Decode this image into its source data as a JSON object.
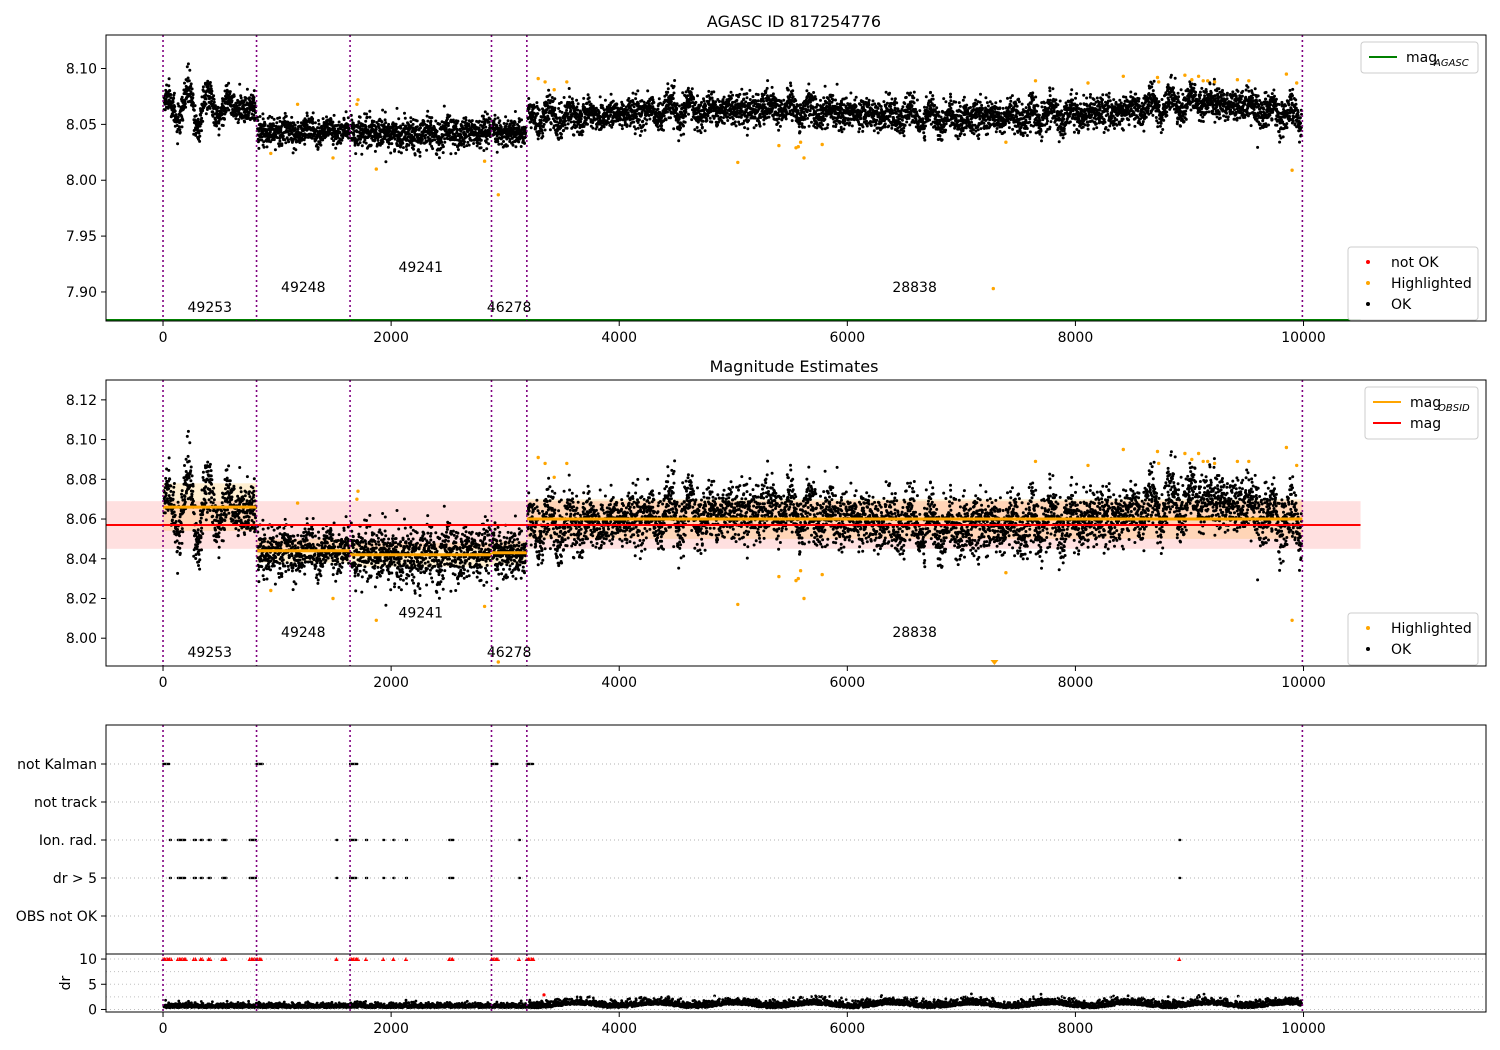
{
  "chart_data": [
    {
      "id": "top",
      "type": "scatter",
      "title": "AGASC ID 817254776",
      "xlim": [
        -500,
        11600
      ],
      "ylim": [
        7.874,
        8.13
      ],
      "xticks": [
        "0",
        "2000",
        "4000",
        "6000",
        "8000",
        "10000"
      ],
      "xtick_values": [
        0,
        2000,
        4000,
        6000,
        8000,
        10000
      ],
      "yticks": [
        "7.90",
        "7.95",
        "8.00",
        "8.05",
        "8.10"
      ],
      "ytick_values": [
        7.9,
        7.95,
        8.0,
        8.05,
        8.1
      ],
      "obsid_boundaries": [
        0,
        820,
        1640,
        2880,
        3190,
        9990
      ],
      "obsid_labels": [
        {
          "text": "49253",
          "x": 410,
          "y": 7.882
        },
        {
          "text": "49248",
          "x": 1230,
          "y": 7.9
        },
        {
          "text": "49241",
          "x": 2260,
          "y": 7.918
        },
        {
          "text": "46278",
          "x": 3035,
          "y": 7.882
        },
        {
          "text": "28838",
          "x": 6590,
          "y": 7.9
        }
      ],
      "reference_line": {
        "name": "mag",
        "subscript": "AGASC",
        "y": 7.874,
        "x_range": [
          -500,
          10500
        ],
        "color": "#008000"
      },
      "segments": [
        {
          "x_range": [
            0,
            820
          ],
          "mean": 8.065,
          "amp": 0.018,
          "noise": 0.007
        },
        {
          "x_range": [
            820,
            1640
          ],
          "mean": 8.044,
          "amp": 0.004,
          "noise": 0.006
        },
        {
          "x_range": [
            1640,
            2880
          ],
          "mean": 8.042,
          "amp": 0.005,
          "noise": 0.007
        },
        {
          "x_range": [
            2880,
            3190
          ],
          "mean": 8.043,
          "amp": 0.004,
          "noise": 0.006
        },
        {
          "x_range": [
            3190,
            9990
          ],
          "mean": 8.06,
          "amp": 0.008,
          "noise": 0.007
        }
      ],
      "ok_points_approx": 7000,
      "highlighted_points": [
        [
          1180,
          8.068
        ],
        [
          945,
          8.024
        ],
        [
          1490,
          8.02
        ],
        [
          1870,
          8.01
        ],
        [
          1700,
          8.068
        ],
        [
          1710,
          8.072
        ],
        [
          2820,
          8.017
        ],
        [
          2940,
          7.987
        ],
        [
          3290,
          8.091
        ],
        [
          3350,
          8.088
        ],
        [
          3540,
          8.088
        ],
        [
          3430,
          8.081
        ],
        [
          5040,
          8.016
        ],
        [
          5400,
          8.031
        ],
        [
          5570,
          8.03
        ],
        [
          5590,
          8.034
        ],
        [
          5550,
          8.029
        ],
        [
          5620,
          8.02
        ],
        [
          5780,
          8.032
        ],
        [
          7280,
          7.903
        ],
        [
          7390,
          8.034
        ],
        [
          7650,
          8.089
        ],
        [
          8110,
          8.087
        ],
        [
          8420,
          8.093
        ],
        [
          8720,
          8.092
        ],
        [
          8960,
          8.094
        ],
        [
          9020,
          8.09
        ],
        [
          9080,
          8.093
        ],
        [
          9120,
          8.089
        ],
        [
          9160,
          8.089
        ],
        [
          9220,
          8.088
        ],
        [
          9420,
          8.09
        ],
        [
          9520,
          8.089
        ],
        [
          9850,
          8.095
        ],
        [
          9900,
          8.009
        ],
        [
          9940,
          8.087
        ],
        [
          8730,
          8.088
        ]
      ],
      "legend_top": [
        {
          "label": "mag",
          "subscript": "AGASC",
          "color": "#008000"
        }
      ],
      "legend_bottom": [
        {
          "label": "not OK",
          "color": "#ff0000"
        },
        {
          "label": "Highlighted",
          "color": "#ffa500"
        },
        {
          "label": "OK",
          "color": "#000000"
        }
      ]
    },
    {
      "id": "middle",
      "type": "scatter",
      "title": "Magnitude Estimates",
      "xlim": [
        -500,
        11600
      ],
      "ylim": [
        7.986,
        8.13
      ],
      "xticks": [
        "0",
        "2000",
        "4000",
        "6000",
        "8000",
        "10000"
      ],
      "xtick_values": [
        0,
        2000,
        4000,
        6000,
        8000,
        10000
      ],
      "yticks": [
        "8.00",
        "8.02",
        "8.04",
        "8.06",
        "8.08",
        "8.10",
        "8.12"
      ],
      "ytick_values": [
        8.0,
        8.02,
        8.04,
        8.06,
        8.08,
        8.1,
        8.12
      ],
      "obsid_boundaries": [
        0,
        820,
        1640,
        2880,
        3190,
        9990
      ],
      "obsid_labels": [
        {
          "text": "49253",
          "x": 410,
          "y": 7.9905
        },
        {
          "text": "49248",
          "x": 1230,
          "y": 8.0005
        },
        {
          "text": "49241",
          "x": 2260,
          "y": 8.0105
        },
        {
          "text": "46278",
          "x": 3035,
          "y": 7.9905
        },
        {
          "text": "28838",
          "x": 6590,
          "y": 8.0005
        }
      ],
      "overall_mag": {
        "name": "mag",
        "y": 8.057,
        "band": [
          8.045,
          8.069
        ],
        "x_range": [
          -500,
          10500
        ],
        "color": "#ff0000"
      },
      "obsid_mags": [
        {
          "x_range": [
            0,
            820
          ],
          "y": 8.066,
          "band": [
            8.054,
            8.078
          ]
        },
        {
          "x_range": [
            820,
            1640
          ],
          "y": 8.044,
          "band": [
            8.038,
            8.05
          ]
        },
        {
          "x_range": [
            1640,
            2880
          ],
          "y": 8.042,
          "band": [
            8.036,
            8.048
          ]
        },
        {
          "x_range": [
            2880,
            3190
          ],
          "y": 8.043,
          "band": [
            8.037,
            8.049
          ]
        },
        {
          "x_range": [
            3190,
            9990
          ],
          "y": 8.06,
          "band": [
            8.05,
            8.07
          ]
        }
      ],
      "highlighted_points": [
        [
          1180,
          8.068
        ],
        [
          945,
          8.024
        ],
        [
          1490,
          8.02
        ],
        [
          1870,
          8.009
        ],
        [
          1700,
          8.07
        ],
        [
          1710,
          8.074
        ],
        [
          2820,
          8.016
        ],
        [
          2940,
          7.988
        ],
        [
          3290,
          8.091
        ],
        [
          3350,
          8.088
        ],
        [
          3540,
          8.088
        ],
        [
          3430,
          8.081
        ],
        [
          5040,
          8.017
        ],
        [
          5400,
          8.031
        ],
        [
          5570,
          8.03
        ],
        [
          5590,
          8.034
        ],
        [
          5550,
          8.029
        ],
        [
          5620,
          8.02
        ],
        [
          5780,
          8.032
        ],
        [
          7390,
          8.033
        ],
        [
          7650,
          8.089
        ],
        [
          8110,
          8.087
        ],
        [
          8420,
          8.095
        ],
        [
          8720,
          8.094
        ],
        [
          8960,
          8.093
        ],
        [
          9020,
          8.09
        ],
        [
          9080,
          8.093
        ],
        [
          9120,
          8.089
        ],
        [
          9160,
          8.089
        ],
        [
          9220,
          8.088
        ],
        [
          9420,
          8.089
        ],
        [
          9520,
          8.089
        ],
        [
          9850,
          8.096
        ],
        [
          9900,
          8.009
        ],
        [
          9940,
          8.087
        ],
        [
          8730,
          8.088
        ]
      ],
      "clipped_point": {
        "x": 7290,
        "y": 7.986
      },
      "legend_top": [
        {
          "label": "mag",
          "subscript": "OBSID",
          "color": "#ffa500"
        },
        {
          "label": "mag",
          "subscript": "",
          "color": "#ff0000"
        }
      ],
      "legend_bottom": [
        {
          "label": "Highlighted",
          "color": "#ffa500"
        },
        {
          "label": "OK",
          "color": "#000000"
        }
      ]
    },
    {
      "id": "flags",
      "type": "scatter",
      "xlim": [
        -500,
        11600
      ],
      "categories": [
        "not Kalman",
        "not track",
        "Ion. rad.",
        "dr > 5",
        "OBS not OK"
      ],
      "obsid_boundaries": [
        0,
        820,
        1640,
        2880,
        3190,
        9990
      ],
      "flag_points": {
        "not Kalman": [
          [
            0,
            60
          ],
          [
            820,
            880
          ],
          [
            1640,
            1710
          ],
          [
            2880,
            2940
          ],
          [
            3190,
            3250
          ]
        ],
        "not track": [],
        "Ion. rad.": [
          [
            60,
            75
          ],
          [
            130,
            200
          ],
          [
            270,
            290
          ],
          [
            330,
            350
          ],
          [
            400,
            420
          ],
          [
            520,
            560
          ],
          [
            760,
            820
          ],
          [
            1520,
            1530
          ],
          [
            1640,
            1700
          ],
          [
            1780,
            1790
          ],
          [
            1930,
            1940
          ],
          [
            2020,
            2030
          ],
          [
            2130,
            2140
          ],
          [
            2510,
            2550
          ],
          [
            3120,
            3130
          ],
          [
            8910,
            8920
          ]
        ],
        "dr > 5": [
          [
            60,
            75
          ],
          [
            130,
            200
          ],
          [
            270,
            290
          ],
          [
            330,
            350
          ],
          [
            400,
            420
          ],
          [
            520,
            560
          ],
          [
            760,
            820
          ],
          [
            1520,
            1530
          ],
          [
            1640,
            1700
          ],
          [
            1780,
            1790
          ],
          [
            1930,
            1940
          ],
          [
            2020,
            2030
          ],
          [
            2130,
            2140
          ],
          [
            2510,
            2550
          ],
          [
            3120,
            3130
          ],
          [
            8910,
            8920
          ]
        ],
        "OBS not OK": []
      }
    },
    {
      "id": "dr",
      "type": "scatter",
      "ylabel": "dr",
      "xlim": [
        -500,
        11600
      ],
      "ylim": [
        -0.5,
        11
      ],
      "xticks": [
        "0",
        "2000",
        "4000",
        "6000",
        "8000",
        "10000"
      ],
      "xtick_values": [
        0,
        2000,
        4000,
        6000,
        8000,
        10000
      ],
      "yticks": [
        "0",
        "5",
        "10"
      ],
      "ytick_values": [
        0,
        5,
        10
      ],
      "segments": [
        {
          "x_range": [
            0,
            3190
          ],
          "mean": 0.6,
          "noise": 0.3
        },
        {
          "x_range": [
            3190,
            9990
          ],
          "mean": 1.0,
          "noise": 0.45
        }
      ],
      "clipped_x_ranges": [
        [
          0,
          80
        ],
        [
          130,
          200
        ],
        [
          270,
          290
        ],
        [
          330,
          350
        ],
        [
          400,
          420
        ],
        [
          520,
          560
        ],
        [
          760,
          860
        ],
        [
          1520,
          1530
        ],
        [
          1640,
          1710
        ],
        [
          1780,
          1790
        ],
        [
          1930,
          1940
        ],
        [
          2020,
          2030
        ],
        [
          2130,
          2140
        ],
        [
          2510,
          2550
        ],
        [
          2880,
          2940
        ],
        [
          3120,
          3130
        ],
        [
          3190,
          3250
        ],
        [
          8910,
          8920
        ]
      ],
      "clipped_value": 10
    }
  ]
}
